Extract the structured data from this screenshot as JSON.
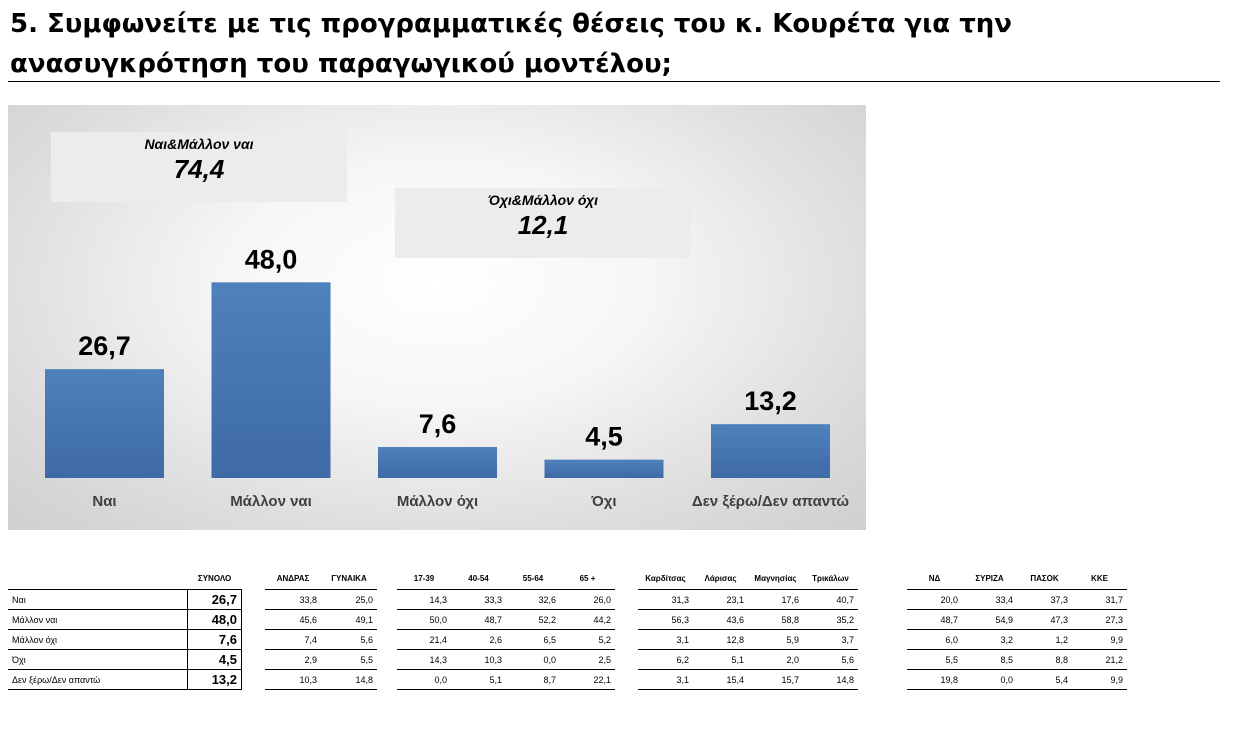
{
  "title": "5. Συμφωνείτε με τις προγραμματικές θέσεις του κ. Κουρέτα για την ανασυγκρότηση του παραγωγικού μοντέλου;",
  "callouts": {
    "yes": {
      "label": "Ναι&Μάλλον ναι",
      "value": "74,4"
    },
    "no": {
      "label": "Όχι&Μάλλον όχι",
      "value": "12,1"
    }
  },
  "colors": {
    "bar_top": "#4f81bd",
    "bar_bottom": "#3e6aa6"
  },
  "chart_data": {
    "type": "bar",
    "categories": [
      "Ναι",
      "Μάλλον ναι",
      "Μάλλον όχι",
      "Όχι",
      "Δεν ξέρω/Δεν απαντώ"
    ],
    "values": [
      26.7,
      48.0,
      7.6,
      4.5,
      13.2
    ],
    "value_labels": [
      "26,7",
      "48,0",
      "7,6",
      "4,5",
      "13,2"
    ],
    "title": "",
    "xlabel": "",
    "ylabel": "",
    "ylim": [
      0,
      65
    ],
    "grid": false,
    "legend": "none"
  },
  "table": {
    "row_labels": [
      "Ναι",
      "Μάλλον ναι",
      "Μάλλον όχι",
      "Όχι",
      "Δεν ξέρω/Δεν απαντώ"
    ],
    "total": {
      "header": "ΣΥΝΟΛΟ",
      "values": [
        "26,7",
        "48,0",
        "7,6",
        "4,5",
        "13,2"
      ]
    },
    "groups": [
      {
        "headers": [
          "ΑΝΔΡΑΣ",
          "ΓΥΝΑΙΚΑ"
        ],
        "rows": [
          [
            "33,8",
            "25,0"
          ],
          [
            "45,6",
            "49,1"
          ],
          [
            "7,4",
            "5,6"
          ],
          [
            "2,9",
            "5,5"
          ],
          [
            "10,3",
            "14,8"
          ]
        ]
      },
      {
        "headers": [
          "17-39",
          "40-54",
          "55-64",
          "65 +"
        ],
        "rows": [
          [
            "14,3",
            "33,3",
            "32,6",
            "26,0"
          ],
          [
            "50,0",
            "48,7",
            "52,2",
            "44,2"
          ],
          [
            "21,4",
            "2,6",
            "6,5",
            "5,2"
          ],
          [
            "14,3",
            "10,3",
            "0,0",
            "2,5"
          ],
          [
            "0,0",
            "5,1",
            "8,7",
            "22,1"
          ]
        ]
      },
      {
        "headers": [
          "Καρδίτσας",
          "Λάρισας",
          "Μαγνησίας",
          "Τρικάλων"
        ],
        "rows": [
          [
            "31,3",
            "23,1",
            "17,6",
            "40,7"
          ],
          [
            "56,3",
            "43,6",
            "58,8",
            "35,2"
          ],
          [
            "3,1",
            "12,8",
            "5,9",
            "3,7"
          ],
          [
            "6,2",
            "5,1",
            "2,0",
            "5,6"
          ],
          [
            "3,1",
            "15,4",
            "15,7",
            "14,8"
          ]
        ]
      },
      {
        "headers": [
          "ΝΔ",
          "ΣΥΡΙΖΑ",
          "ΠΑΣΟΚ",
          "ΚΚΕ"
        ],
        "rows": [
          [
            "20,0",
            "33,4",
            "37,3",
            "31,7"
          ],
          [
            "48,7",
            "54,9",
            "47,3",
            "27,3"
          ],
          [
            "6,0",
            "3,2",
            "1,2",
            "9,9"
          ],
          [
            "5,5",
            "8,5",
            "8,8",
            "21,2"
          ],
          [
            "19,8",
            "0,0",
            "5,4",
            "9,9"
          ]
        ]
      }
    ]
  }
}
